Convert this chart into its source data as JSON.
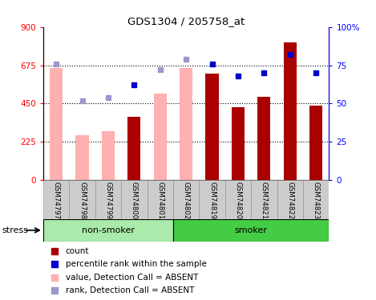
{
  "title": "GDS1304 / 205758_at",
  "samples": [
    "GSM74797",
    "GSM74798",
    "GSM74799",
    "GSM74800",
    "GSM74801",
    "GSM74802",
    "GSM74819",
    "GSM74820",
    "GSM74821",
    "GSM74822",
    "GSM74823"
  ],
  "absent": [
    true,
    true,
    true,
    false,
    true,
    true,
    false,
    false,
    false,
    false,
    false
  ],
  "count_values": [
    660,
    265,
    285,
    370,
    510,
    660,
    625,
    430,
    490,
    810,
    440
  ],
  "rank_values": [
    76,
    52,
    54,
    62,
    72,
    79,
    76,
    68,
    70,
    82,
    70
  ],
  "ylim_left": [
    0,
    900
  ],
  "ylim_right": [
    0,
    100
  ],
  "yticks_left": [
    0,
    225,
    450,
    675,
    900
  ],
  "yticks_right": [
    0,
    25,
    50,
    75,
    100
  ],
  "ytick_labels_left": [
    "0",
    "225",
    "450",
    "675",
    "900"
  ],
  "ytick_labels_right": [
    "0",
    "25",
    "50",
    "75",
    "100%"
  ],
  "bar_color_present": "#aa0000",
  "bar_color_absent": "#ffb0b0",
  "rank_color_present": "#0000cc",
  "rank_color_absent": "#9999cc",
  "color_nonsmoker": "#aaeaaa",
  "color_smoker": "#44cc44",
  "group_boundary": 5,
  "bar_width": 0.5
}
